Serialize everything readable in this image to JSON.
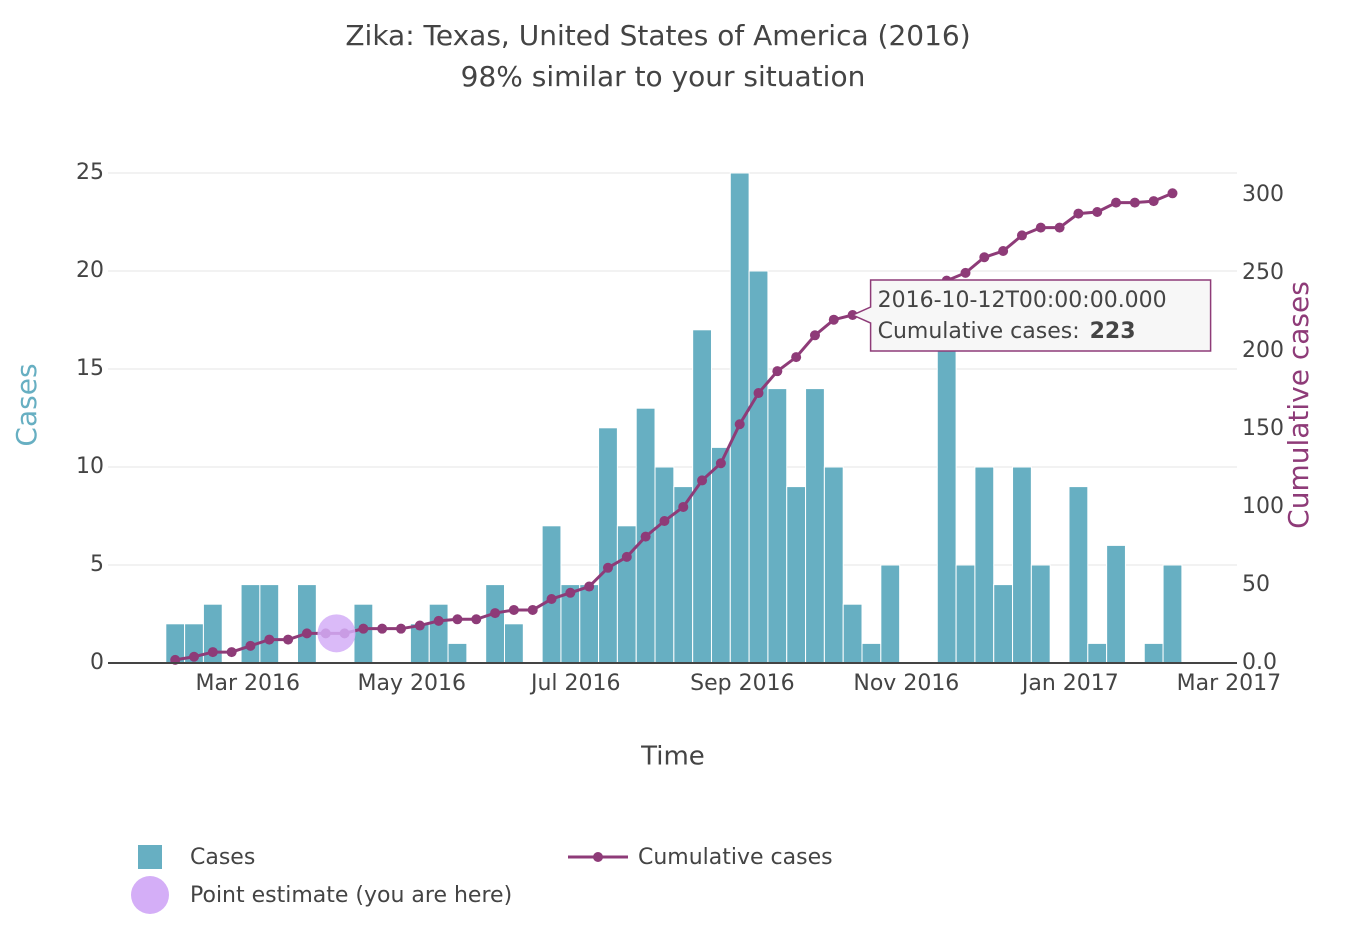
{
  "chart_data": {
    "type": "bar-line",
    "title": "Zika: Texas, United States of America (2016)",
    "subtitle": "98% similar to your situation",
    "x_label": "Time",
    "y_label": "Cases",
    "y2_label": "Cumulative cases",
    "x": [
      "2016-02-03",
      "2016-02-10",
      "2016-02-17",
      "2016-02-24",
      "2016-03-02",
      "2016-03-09",
      "2016-03-16",
      "2016-03-23",
      "2016-03-30",
      "2016-04-06",
      "2016-04-13",
      "2016-04-20",
      "2016-04-27",
      "2016-05-04",
      "2016-05-11",
      "2016-05-18",
      "2016-05-25",
      "2016-06-01",
      "2016-06-08",
      "2016-06-15",
      "2016-06-22",
      "2016-06-29",
      "2016-07-06",
      "2016-07-13",
      "2016-07-20",
      "2016-07-27",
      "2016-08-03",
      "2016-08-10",
      "2016-08-17",
      "2016-08-24",
      "2016-08-31",
      "2016-09-07",
      "2016-09-14",
      "2016-09-21",
      "2016-09-28",
      "2016-10-05",
      "2016-10-12",
      "2016-10-19",
      "2016-10-26",
      "2016-11-02",
      "2016-11-09",
      "2016-11-16",
      "2016-11-23",
      "2016-11-30",
      "2016-12-07",
      "2016-12-14",
      "2016-12-21",
      "2016-12-28",
      "2017-01-04",
      "2017-01-11",
      "2017-01-18",
      "2017-01-25",
      "2017-02-01",
      "2017-02-08"
    ],
    "series": [
      {
        "name": "Cases",
        "type": "bar",
        "color": "#67afc2",
        "values": [
          2,
          2,
          3,
          0,
          4,
          4,
          0,
          4,
          0,
          0,
          3,
          0,
          0,
          2,
          3,
          1,
          0,
          4,
          2,
          0,
          7,
          4,
          4,
          12,
          7,
          13,
          10,
          9,
          17,
          11,
          25,
          20,
          14,
          9,
          14,
          10,
          3,
          1,
          5,
          0,
          0,
          16,
          5,
          10,
          4,
          10,
          5,
          0,
          9,
          1,
          6,
          0,
          1,
          5
        ]
      },
      {
        "name": "Cumulative cases",
        "type": "line",
        "axis": "y2",
        "color": "#8e3b78",
        "values": [
          2,
          4,
          7,
          7,
          11,
          15,
          15,
          19,
          19,
          19,
          22,
          22,
          22,
          24,
          27,
          28,
          28,
          32,
          34,
          34,
          41,
          45,
          49,
          61,
          68,
          81,
          91,
          100,
          117,
          128,
          153,
          173,
          187,
          196,
          210,
          220,
          223,
          224,
          229,
          229,
          229,
          245,
          250,
          260,
          264,
          274,
          279,
          279,
          288,
          289,
          295,
          295,
          296,
          301
        ]
      }
    ],
    "point_estimate": {
      "name": "Point estimate (you are here)",
      "x": "2016-04-03",
      "value": 19,
      "axis": "y2",
      "color": "#d4aef7"
    },
    "tooltip": {
      "x_label": "2016-10-12T00:00:00.000",
      "label": "Cumulative cases:",
      "series": 1,
      "index": 36
    },
    "xlim": [
      "2016-01-09",
      "2017-03-04"
    ],
    "xticks": [
      {
        "value": "2016-03-01",
        "label": "Mar 2016"
      },
      {
        "value": "2016-05-01",
        "label": "May 2016"
      },
      {
        "value": "2016-07-01",
        "label": "Jul 2016"
      },
      {
        "value": "2016-09-01",
        "label": "Sep 2016"
      },
      {
        "value": "2016-11-01",
        "label": "Nov 2016"
      },
      {
        "value": "2017-01-01",
        "label": "Jan 2017"
      },
      {
        "value": "2017-03-01",
        "label": "Mar 2017"
      }
    ],
    "ylim": [
      0,
      25
    ],
    "yticks": [
      0,
      5,
      10,
      15,
      20,
      25
    ],
    "y2lim": [
      0,
      314
    ],
    "y2ticks": [
      {
        "value": 0,
        "label": "0.0"
      },
      50,
      100,
      150,
      200,
      250,
      300
    ],
    "grid": true
  }
}
